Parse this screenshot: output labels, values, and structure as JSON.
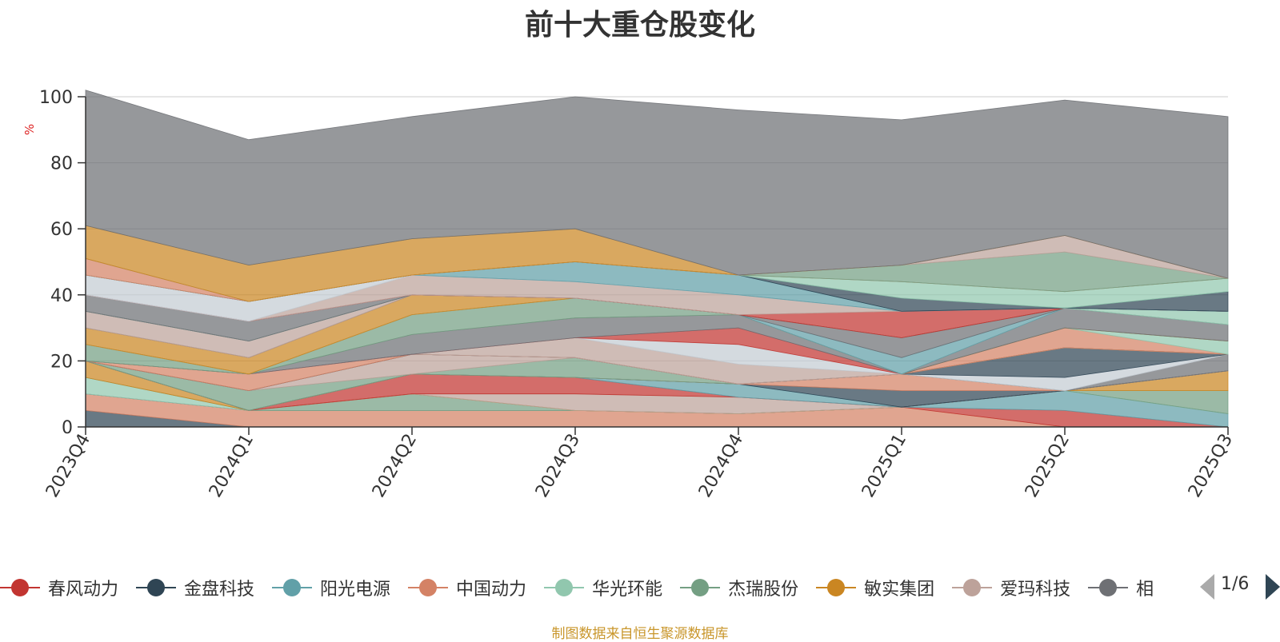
{
  "chart_data": {
    "type": "area",
    "title": "前十大重仓股变化",
    "ylabel": "%",
    "ylim": [
      0,
      100
    ],
    "y_ticks": [
      0,
      20,
      40,
      60,
      80,
      100
    ],
    "grid": true,
    "legend_position": "bottom",
    "categories": [
      "2023Q4",
      "2024Q1",
      "2024Q2",
      "2024Q3",
      "2024Q4",
      "2025Q1",
      "2025Q2",
      "2025Q3"
    ],
    "series": [
      {
        "name": "春风动力",
        "color": "#c23531",
        "values": [
          0,
          0,
          6,
          5,
          4,
          0,
          5,
          0
        ]
      },
      {
        "name": "金盘科技",
        "color": "#2f4554",
        "values": [
          5,
          0,
          0,
          0,
          0,
          0,
          0,
          0
        ]
      },
      {
        "name": "阳光电源",
        "color": "#61a0a8",
        "values": [
          0,
          0,
          0,
          0,
          0,
          6,
          6,
          4
        ]
      },
      {
        "name": "中国动力",
        "color": "#d48265",
        "values": [
          5,
          5,
          5,
          5,
          5,
          0,
          0,
          0
        ]
      },
      {
        "name": "华光环能",
        "color": "#91c7ae",
        "values": [
          5,
          0,
          0,
          0,
          0,
          0,
          0,
          0
        ]
      },
      {
        "name": "杰瑞股份",
        "color": "#749f83",
        "values": [
          0,
          0,
          5,
          0,
          0,
          0,
          0,
          6
        ]
      },
      {
        "name": "敏实集团",
        "color": "#ca8622",
        "values": [
          0,
          0,
          0,
          0,
          0,
          0,
          0,
          6
        ]
      },
      {
        "name": "爱玛科技",
        "color": "#bda29a",
        "values": [
          0,
          0,
          0,
          5,
          5,
          0,
          0,
          0
        ]
      },
      {
        "name": "",
        "color": "#6e7074",
        "values": [
          0,
          0,
          0,
          0,
          0,
          0,
          0,
          4
        ]
      },
      {
        "name": "",
        "color": "#c23531",
        "values": [
          0,
          0,
          0,
          0,
          0,
          0,
          0,
          0
        ]
      },
      {
        "name": "",
        "color": "#61a0a8",
        "values": [
          0,
          0,
          0,
          0,
          4,
          0,
          0,
          0
        ]
      },
      {
        "name": "",
        "color": "#749f83",
        "values": [
          0,
          6,
          0,
          6,
          0,
          0,
          0,
          0
        ]
      },
      {
        "name": "",
        "color": "#2f4554",
        "values": [
          0,
          0,
          0,
          0,
          0,
          0,
          0,
          0
        ]
      },
      {
        "name": "",
        "color": "#d48265",
        "values": [
          0,
          0,
          0,
          0,
          0,
          0,
          0,
          0
        ]
      },
      {
        "name": "",
        "color": "#bda29a",
        "values": [
          0,
          0,
          0,
          0,
          0,
          0,
          0,
          0
        ]
      },
      {
        "name": "",
        "color": "#c23531",
        "values": [
          0,
          0,
          0,
          0,
          0,
          0,
          0,
          0
        ]
      },
      {
        "name": "",
        "color": "#91c7ae",
        "values": [
          0,
          0,
          0,
          0,
          0,
          0,
          0,
          0
        ]
      },
      {
        "name": "",
        "color": "#d48265",
        "values": [
          0,
          0,
          0,
          0,
          0,
          0,
          0,
          0
        ]
      },
      {
        "name": "",
        "color": "#6e7074",
        "values": [
          0,
          0,
          0,
          0,
          0,
          0,
          0,
          0
        ]
      },
      {
        "name": "",
        "color": "#bda29a",
        "values": [
          0,
          0,
          0,
          0,
          0,
          0,
          0,
          0
        ]
      },
      {
        "name": "",
        "color": "#2f4554",
        "values": [
          0,
          0,
          0,
          0,
          0,
          0,
          0,
          0
        ]
      },
      {
        "name": "",
        "color": "#91c7ae",
        "values": [
          0,
          0,
          0,
          0,
          0,
          0,
          0,
          0
        ]
      },
      {
        "name": "",
        "color": "#ca8622",
        "values": [
          0,
          0,
          0,
          0,
          0,
          0,
          0,
          0
        ]
      },
      {
        "name": "",
        "color": "#2f4554",
        "values": [
          0,
          0,
          0,
          0,
          0,
          0,
          0,
          0
        ]
      },
      {
        "name": "",
        "color": "#d48265",
        "values": [
          0,
          0,
          0,
          0,
          0,
          0,
          0,
          0
        ]
      },
      {
        "name": "",
        "color": "#c23531",
        "values": [
          0,
          0,
          0,
          0,
          0,
          0,
          0,
          0
        ]
      },
      {
        "name": "",
        "color": "#61a0a8",
        "values": [
          0,
          0,
          0,
          0,
          0,
          0,
          0,
          0
        ]
      },
      {
        "name": "",
        "color": "#749f83",
        "values": [
          0,
          0,
          0,
          0,
          0,
          0,
          0,
          0
        ]
      },
      {
        "name": "",
        "color": "#d48265",
        "values": [
          0,
          0,
          0,
          0,
          0,
          0,
          0,
          0
        ]
      },
      {
        "name": "",
        "color": "#bda29a",
        "values": [
          0,
          0,
          0,
          0,
          0,
          0,
          0,
          0
        ]
      },
      {
        "name": "",
        "color": "#ca8622",
        "values": [
          0,
          0,
          0,
          0,
          0,
          0,
          0,
          0
        ]
      },
      {
        "name": "",
        "color": "#c4ccd3",
        "values": [
          0,
          0,
          0,
          0,
          0,
          0,
          0,
          0
        ]
      },
      {
        "name": "",
        "color": "#6e7074",
        "values": [
          0,
          0,
          0,
          0,
          0,
          0,
          0,
          0
        ]
      }
    ],
    "bands": [
      {
        "color": "#2f4554",
        "values": [
          5,
          0,
          0,
          0,
          0,
          0,
          0,
          0
        ]
      },
      {
        "color": "#d48265",
        "values": [
          5,
          5,
          5,
          5,
          4,
          6,
          0,
          0
        ]
      },
      {
        "color": "#c23531",
        "values": [
          0,
          0,
          0,
          0,
          0,
          0,
          5,
          0
        ]
      },
      {
        "color": "#61a0a8",
        "values": [
          0,
          0,
          0,
          0,
          0,
          0,
          6,
          4
        ]
      },
      {
        "color": "#91c7ae",
        "values": [
          5,
          0,
          0,
          0,
          0,
          0,
          0,
          0
        ]
      },
      {
        "color": "#749f83",
        "values": [
          0,
          0,
          5,
          0,
          0,
          0,
          0,
          7
        ]
      },
      {
        "color": "#ca8622",
        "values": [
          5,
          0,
          0,
          0,
          0,
          0,
          0,
          6
        ]
      },
      {
        "color": "#bda29a",
        "values": [
          0,
          0,
          0,
          5,
          5,
          0,
          0,
          0
        ]
      },
      {
        "color": "#c23531",
        "values": [
          0,
          0,
          6,
          5,
          0,
          0,
          0,
          0
        ]
      },
      {
        "color": "#61a0a8",
        "values": [
          0,
          0,
          0,
          0,
          4,
          0,
          0,
          0
        ]
      },
      {
        "color": "#2f4554",
        "values": [
          0,
          0,
          0,
          0,
          0,
          5,
          0,
          0
        ]
      },
      {
        "color": "#d48265",
        "values": [
          0,
          0,
          0,
          0,
          0,
          5,
          0,
          0
        ]
      },
      {
        "color": "#749f83",
        "values": [
          0,
          6,
          0,
          6,
          0,
          0,
          0,
          0
        ]
      },
      {
        "color": "#bda29a",
        "values": [
          0,
          0,
          6,
          0,
          0,
          0,
          0,
          0
        ]
      },
      {
        "color": "#6e7074",
        "values": [
          0,
          0,
          0,
          0,
          0,
          0,
          0,
          5
        ]
      },
      {
        "color": "#c4ccd3",
        "values": [
          0,
          0,
          0,
          0,
          0,
          0,
          4,
          0
        ]
      },
      {
        "color": "#2f4554",
        "values": [
          0,
          0,
          0,
          0,
          0,
          0,
          9,
          0
        ]
      },
      {
        "color": "#d48265",
        "values": [
          0,
          5,
          0,
          0,
          0,
          0,
          0,
          0
        ]
      },
      {
        "color": "#bda29a",
        "values": [
          0,
          0,
          0,
          6,
          6,
          0,
          0,
          0
        ]
      },
      {
        "color": "#c4ccd3",
        "values": [
          0,
          0,
          0,
          0,
          6,
          0,
          0,
          0
        ]
      },
      {
        "color": "#c23531",
        "values": [
          0,
          0,
          0,
          0,
          5,
          0,
          0,
          0
        ]
      },
      {
        "color": "#6e7074",
        "values": [
          0,
          0,
          6,
          6,
          4,
          0,
          0,
          0
        ]
      },
      {
        "color": "#749f83",
        "values": [
          5,
          0,
          6,
          6,
          0,
          0,
          0,
          0
        ]
      },
      {
        "color": "#d48265",
        "values": [
          0,
          0,
          0,
          0,
          0,
          0,
          6,
          0
        ]
      },
      {
        "color": "#91c7ae",
        "values": [
          0,
          0,
          0,
          0,
          0,
          0,
          0,
          4
        ]
      },
      {
        "color": "#ca8622",
        "values": [
          5,
          5,
          6,
          0,
          0,
          0,
          0,
          0
        ]
      },
      {
        "color": "#6e7074",
        "values": [
          0,
          0,
          0,
          0,
          0,
          0,
          6,
          5
        ]
      },
      {
        "color": "#bda29a",
        "values": [
          5,
          5,
          0,
          0,
          0,
          0,
          0,
          0
        ]
      },
      {
        "color": "#61a0a8",
        "values": [
          0,
          0,
          0,
          0,
          0,
          5,
          0,
          0
        ]
      },
      {
        "color": "#6e7074",
        "values": [
          0,
          0,
          0,
          0,
          0,
          6,
          0,
          0
        ]
      },
      {
        "color": "#91c7ae",
        "values": [
          0,
          0,
          0,
          0,
          0,
          0,
          0,
          4
        ]
      },
      {
        "color": "#6e7074",
        "values": [
          5,
          6,
          0,
          0,
          0,
          0,
          0,
          0
        ]
      },
      {
        "color": "#c23531",
        "values": [
          0,
          0,
          0,
          0,
          0,
          8,
          0,
          0
        ]
      },
      {
        "color": "#bda29a",
        "values": [
          0,
          0,
          6,
          5,
          6,
          0,
          0,
          0
        ]
      },
      {
        "color": "#c4ccd3",
        "values": [
          6,
          6,
          0,
          0,
          0,
          0,
          0,
          0
        ]
      },
      {
        "color": "#61a0a8",
        "values": [
          0,
          0,
          0,
          6,
          6,
          0,
          0,
          0
        ]
      },
      {
        "color": "#2f4554",
        "values": [
          0,
          0,
          0,
          0,
          0,
          4,
          0,
          6
        ]
      },
      {
        "color": "#91c7ae",
        "values": [
          0,
          0,
          0,
          0,
          0,
          5,
          5,
          4
        ]
      },
      {
        "color": "#d48265",
        "values": [
          5,
          0,
          0,
          0,
          0,
          0,
          0,
          0
        ]
      },
      {
        "color": "#749f83",
        "values": [
          0,
          0,
          0,
          0,
          0,
          5,
          12,
          0
        ]
      },
      {
        "color": "#bda29a",
        "values": [
          0,
          0,
          0,
          0,
          0,
          0,
          5,
          0
        ]
      },
      {
        "color": "#ca8622",
        "values": [
          10,
          11,
          11,
          10,
          0,
          0,
          0,
          0
        ]
      },
      {
        "color": "#6e7074",
        "values": [
          41,
          38,
          37,
          40,
          50,
          44,
          41,
          49
        ]
      }
    ]
  },
  "legend": {
    "items": [
      {
        "label": "春风动力",
        "color": "#c23531"
      },
      {
        "label": "金盘科技",
        "color": "#2f4554"
      },
      {
        "label": "阳光电源",
        "color": "#61a0a8"
      },
      {
        "label": "中国动力",
        "color": "#d48265"
      },
      {
        "label": "华光环能",
        "color": "#91c7ae"
      },
      {
        "label": "杰瑞股份",
        "color": "#749f83"
      },
      {
        "label": "敏实集团",
        "color": "#ca8622"
      },
      {
        "label": "爱玛科技",
        "color": "#bda29a"
      },
      {
        "label": "相",
        "color": "#6e7074"
      }
    ],
    "pager_text": "1/6"
  },
  "source_note": "制图数据来自恒生聚源数据库"
}
